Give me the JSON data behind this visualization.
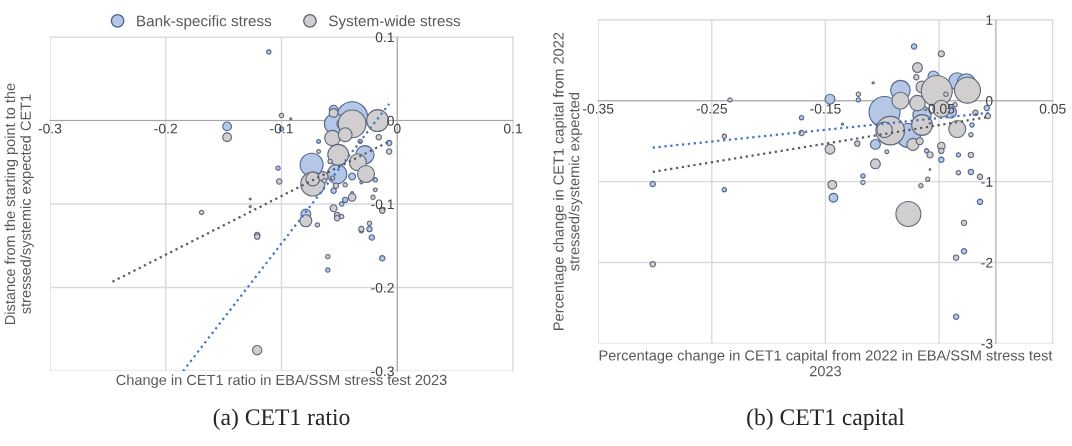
{
  "chart_data": [
    {
      "type": "bubble",
      "title": "(a) CET1 ratio",
      "xlabel": "Change in CET1 ratio in EBA/SSM stress test 2023",
      "ylabel": "Distance from the starting point to the\nstressed/systemic expected CET1",
      "xlim": [
        -0.3,
        0.1
      ],
      "xticks": [
        -0.3,
        -0.2,
        -0.1,
        0,
        0.1
      ],
      "ylim": [
        -0.3,
        0.1
      ],
      "yticks": [
        -0.3,
        -0.2,
        -0.1,
        0,
        0.1
      ],
      "grid": true,
      "legend": "top",
      "marker": "circle",
      "line_style": "dotted",
      "series": [
        {
          "name": "Bank-specific stress",
          "color": "#b4c7e7",
          "x": [
            -0.111,
            -0.147,
            -0.1,
            -0.092,
            -0.068,
            -0.103,
            -0.127,
            -0.074,
            -0.055,
            -0.039,
            -0.054,
            -0.028,
            -0.052,
            -0.039,
            -0.055,
            -0.045,
            -0.048,
            -0.039,
            -0.007,
            -0.019,
            -0.031,
            -0.079,
            -0.121,
            -0.052,
            -0.031,
            -0.024,
            -0.022,
            -0.013,
            -0.06
          ],
          "values": [
            0.082,
            -0.007,
            -0.01,
            0.002,
            -0.025,
            -0.057,
            -0.094,
            -0.053,
            0.013,
            0.004,
            -0.004,
            -0.041,
            -0.064,
            -0.067,
            -0.084,
            -0.095,
            -0.1,
            -0.087,
            -0.027,
            -0.071,
            -0.074,
            -0.112,
            -0.137,
            -0.113,
            -0.132,
            -0.13,
            -0.14,
            -0.165,
            -0.179
          ],
          "sizes": [
            0.02,
            0.08,
            0.02,
            0.004,
            0.015,
            0.02,
            0.004,
            0.55,
            0.08,
            1,
            0.45,
            0.35,
            0.4,
            0.05,
            0.03,
            0.03,
            0.02,
            0.01,
            0.03,
            0.02,
            0.01,
            0.1,
            0.03,
            0.03,
            0.02,
            0.03,
            0.03,
            0.03,
            0.02
          ]
        },
        {
          "name": "System-wide stress",
          "color": "#d0cece",
          "x": [
            -0.1,
            -0.147,
            -0.055,
            -0.048,
            -0.039,
            -0.017,
            -0.056,
            -0.045,
            -0.051,
            -0.034,
            -0.027,
            -0.073,
            -0.073,
            -0.064,
            -0.063,
            -0.056,
            -0.053,
            -0.045,
            -0.032,
            -0.016,
            -0.007,
            -0.102,
            -0.068,
            -0.058,
            -0.019,
            -0.039,
            -0.021,
            -0.169,
            -0.127,
            -0.013,
            -0.079,
            -0.069,
            -0.055,
            -0.052,
            -0.048,
            -0.121,
            -0.031,
            -0.024,
            -0.06,
            -0.121,
            -0.013
          ],
          "values": [
            0.006,
            -0.02,
            0.009,
            -0.004,
            -0.004,
            0.0,
            -0.021,
            -0.017,
            -0.041,
            -0.05,
            -0.064,
            -0.076,
            -0.07,
            -0.067,
            -0.072,
            -0.069,
            -0.078,
            -0.077,
            -0.025,
            -0.02,
            -0.037,
            -0.073,
            -0.037,
            -0.049,
            -0.083,
            -0.092,
            -0.092,
            -0.11,
            -0.103,
            -0.107,
            -0.12,
            -0.125,
            -0.105,
            -0.117,
            -0.115,
            -0.139,
            -0.13,
            -0.123,
            -0.163,
            -0.275,
            -0.108
          ],
          "sizes": [
            0.02,
            0.08,
            0.08,
            0.1,
            0.8,
            0.5,
            0.25,
            0.2,
            0.45,
            0.3,
            0.3,
            0.6,
            0.2,
            0.1,
            0.02,
            0.02,
            0.03,
            0.02,
            0.02,
            0.03,
            0.03,
            0.03,
            0.015,
            0.02,
            0.015,
            0.06,
            0.02,
            0.02,
            0.005,
            0.03,
            0.15,
            0.02,
            0.05,
            0.03,
            0.02,
            0.03,
            0.03,
            0.02,
            0.02,
            0.09,
            0.03
          ]
        },
        {
          "type": "line",
          "marker": "none",
          "color": "#4472c4",
          "x": [
            -0.185,
            -0.007
          ],
          "values": [
            -0.3,
            0.02
          ]
        },
        {
          "type": "line",
          "marker": "none",
          "color": "#595959",
          "x": [
            -0.246,
            -0.007
          ],
          "values": [
            -0.193,
            -0.025
          ]
        }
      ]
    },
    {
      "type": "bubble",
      "title": "(b) CET1 capital",
      "xlabel": "Percentage change in CET1 capital from 2022 in EBA/SSM stress test\n2023",
      "ylabel": "Percentage change in CET1 capital from 2022\nstressed/systemic expected",
      "xlim": [
        -0.35,
        0.05
      ],
      "xticks": [
        -0.35,
        -0.25,
        -0.15,
        -0.05,
        0.05
      ],
      "ylim": [
        -3,
        1
      ],
      "yticks": [
        -3,
        -2,
        -1,
        0,
        1
      ],
      "grid": true,
      "marker": "circle",
      "line_style": "dotted",
      "series": [
        {
          "color": "#b4c7e7",
          "x": [
            -0.072,
            -0.146,
            -0.121,
            -0.108,
            -0.084,
            -0.098,
            -0.077,
            -0.055,
            -0.034,
            -0.026,
            -0.065,
            -0.04,
            -0.171,
            -0.135,
            -0.106,
            -0.117,
            -0.008,
            -0.021,
            -0.033,
            -0.048,
            -0.022,
            -0.014,
            -0.302,
            -0.239,
            -0.143,
            -0.061,
            -0.028,
            -0.035
          ],
          "values": [
            0.67,
            0.02,
            0.01,
            0.22,
            0.13,
            -0.14,
            -0.43,
            0.3,
            0.24,
            0.22,
            -0.18,
            -0.14,
            -0.21,
            -0.29,
            -0.54,
            -0.93,
            -0.09,
            -0.3,
            -0.67,
            -0.73,
            -0.88,
            -1.25,
            -1.03,
            -1.1,
            -1.2,
            -0.62,
            -1.86,
            -2.67
          ],
          "sizes": [
            0.03,
            0.1,
            0.02,
            0.005,
            0.4,
            1,
            0.6,
            0.12,
            0.3,
            0.35,
            0.35,
            0.15,
            0.02,
            0.005,
            0.1,
            0.02,
            0.03,
            0.02,
            0.02,
            0.03,
            0.03,
            0.03,
            0.03,
            0.02,
            0.08,
            0.02,
            0.03,
            0.03
          ]
        },
        {
          "color": "#d0cece",
          "x": [
            -0.234,
            -0.239,
            -0.171,
            -0.146,
            -0.144,
            -0.121,
            -0.122,
            -0.117,
            -0.106,
            -0.096,
            -0.069,
            -0.07,
            -0.065,
            -0.084,
            -0.069,
            -0.052,
            -0.048,
            -0.025,
            -0.093,
            -0.098,
            -0.065,
            -0.073,
            -0.067,
            -0.058,
            -0.048,
            -0.048,
            -0.034,
            -0.048,
            -0.044,
            -0.036,
            -0.018,
            -0.007,
            -0.022,
            -0.022,
            -0.033,
            -0.014,
            -0.06,
            -0.066,
            -0.077,
            -0.028,
            -0.035,
            -0.302,
            -0.058,
            -0.058
          ],
          "values": [
            0.01,
            -0.44,
            -0.4,
            -0.6,
            -1.04,
            0.08,
            -0.53,
            -1.01,
            -0.78,
            -0.63,
            0.41,
            0.29,
            0.17,
            0.0,
            -0.03,
            0.12,
            -0.1,
            0.13,
            -0.37,
            -0.36,
            -0.3,
            -0.54,
            -0.5,
            -0.67,
            -0.56,
            -0.62,
            -0.35,
            0.58,
            0.08,
            -0.05,
            -0.15,
            -0.19,
            -0.42,
            -0.67,
            -0.89,
            -0.94,
            -0.97,
            -1.05,
            -1.4,
            -1.51,
            -1.94,
            -2.02,
            -0.28,
            -0.85
          ],
          "sizes": [
            0.02,
            0.02,
            0.03,
            0.1,
            0.08,
            0.02,
            0.03,
            0.02,
            0.1,
            0.015,
            0.1,
            0.03,
            0.15,
            0.3,
            0.25,
            1,
            0.3,
            0.7,
            0.85,
            0.25,
            0.45,
            0.15,
            0.05,
            0.04,
            0.06,
            0.03,
            0.3,
            0.04,
            0.02,
            0.02,
            0.03,
            0.03,
            0.02,
            0.03,
            0.02,
            0.03,
            0.02,
            0.02,
            0.65,
            0.03,
            0.03,
            0.03,
            0.003,
            0.003
          ]
        },
        {
          "type": "line",
          "marker": "none",
          "color": "#4472c4",
          "x": [
            -0.302,
            -0.006
          ],
          "values": [
            -0.58,
            -0.15
          ]
        },
        {
          "type": "line",
          "marker": "none",
          "color": "#595959",
          "x": [
            -0.302,
            -0.006
          ],
          "values": [
            -0.88,
            -0.2
          ]
        }
      ]
    }
  ]
}
